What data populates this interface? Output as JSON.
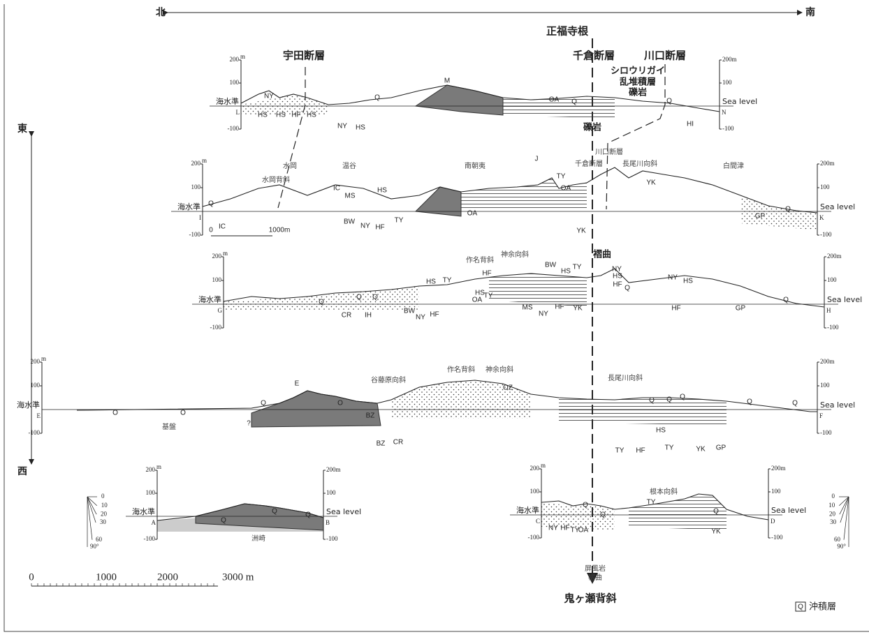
{
  "header": {
    "north": "北",
    "south": "南",
    "east": "東",
    "west": "西"
  },
  "annotations": [
    "正福寺根",
    "宇田断層",
    "千倉断層",
    "川口断層",
    "シロウリガイ",
    "乱堆積層",
    "礫岩",
    "礫岩",
    "褶曲",
    "屏風岩",
    "褶曲",
    "鬼ヶ瀬背斜"
  ],
  "sections": [
    {
      "start": "L",
      "end": "N",
      "left_ticks": [
        "200",
        "m",
        "100",
        "海水準",
        "-100"
      ],
      "right_ticks": [
        "200m",
        "100",
        "Sea level",
        "-100"
      ],
      "labels": [
        "NY",
        "HS",
        "HS",
        "HF",
        "HS",
        "NY",
        "HS",
        "Q",
        "M",
        "OA",
        "Q",
        "Q",
        "HI"
      ]
    },
    {
      "start": "I",
      "end": "K",
      "left_ticks": [
        "200",
        "m",
        "100",
        "海水準",
        "-100"
      ],
      "right_ticks": [
        "200m",
        "100",
        "Sea level",
        "-100"
      ],
      "labels": [
        "水岡",
        "温谷",
        "南朝夷",
        "白間津",
        "水岡背斜",
        "千倉断層",
        "川口断層",
        "長尾川向斜",
        "J",
        "TY",
        "OA",
        "IC",
        "MS",
        "HS",
        "Q",
        "IC",
        "BW",
        "NY",
        "HF",
        "TY",
        "OA",
        "YK",
        "YK",
        "GP",
        "Q",
        "0",
        "1000m"
      ]
    },
    {
      "start": "G",
      "end": "H",
      "left_ticks": [
        "200",
        "m",
        "100",
        "海水準",
        "-100"
      ],
      "right_ticks": [
        "200m",
        "100",
        "Sea level",
        "-100"
      ],
      "labels": [
        "作名背斜",
        "神余向斜",
        "HS",
        "TY",
        "HF",
        "HS",
        "TY",
        "OA",
        "BW",
        "HS",
        "TY",
        "MS",
        "NY",
        "HF",
        "YK",
        "NY",
        "HS",
        "HF",
        "NY",
        "HS",
        "HF",
        "GP",
        "Q",
        "Q",
        "Q",
        "Q",
        "CR",
        "IH",
        "BW",
        "NY",
        "HF",
        "Q"
      ]
    },
    {
      "start": "E",
      "end": "F",
      "left_ticks": [
        "200",
        "m",
        "100",
        "海水準",
        "-100"
      ],
      "right_ticks": [
        "200m",
        "100",
        "Sea level",
        "-100"
      ],
      "labels": [
        "E",
        "谷藤原向斜",
        "作名背斜",
        "神余向斜",
        "OZ",
        "長尾川向斜",
        "O",
        "O",
        "Q",
        "O",
        "基盤",
        "?",
        "BZ",
        "BZ",
        "CR",
        "TY",
        "HF",
        "TY",
        "YK",
        "GP",
        "HS",
        "Q",
        "Q",
        "Q",
        "Q",
        "Q"
      ]
    },
    {
      "start": "A",
      "end": "B",
      "left_ticks": [
        "200",
        "m",
        "100",
        "海水準",
        "-100"
      ],
      "right_ticks": [
        "200m",
        "100",
        "Sea level",
        "-100"
      ],
      "labels": [
        "洲崎",
        "Q",
        "Q",
        "Q"
      ]
    },
    {
      "start": "C",
      "end": "D",
      "left_ticks": [
        "200",
        "m",
        "100",
        "海水準",
        "-100"
      ],
      "right_ticks": [
        "200m",
        "100",
        "Sea level",
        "-100"
      ],
      "labels": [
        "根本向斜",
        "TY",
        "Q",
        "Q",
        "Q",
        "NY",
        "HF",
        "TY",
        "OA",
        "YK"
      ]
    }
  ],
  "dip_gauges": [
    [
      "0",
      "10",
      "20",
      "30",
      "60",
      "90°"
    ],
    [
      "0",
      "10",
      "20",
      "30",
      "60",
      "90°"
    ]
  ],
  "scale_bar": [
    "0",
    "1000",
    "2000",
    "3000 m"
  ],
  "legend": {
    "symbol": "Q",
    "label": "沖積層"
  }
}
